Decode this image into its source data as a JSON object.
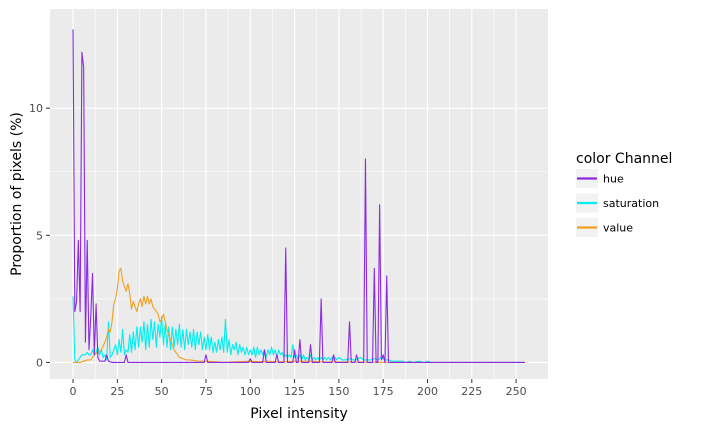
{
  "chart_data": {
    "type": "line",
    "xlabel": "Pixel intensity",
    "ylabel": "Proportion of pixels (%)",
    "xlim": [
      -13,
      268
    ],
    "ylim": [
      -0.65,
      13.9
    ],
    "x_ticks": [
      0,
      25,
      50,
      75,
      100,
      125,
      150,
      175,
      200,
      225,
      250
    ],
    "y_ticks": [
      0,
      5,
      10
    ],
    "grid": true,
    "legend": {
      "title": "color Channel",
      "position": "right"
    },
    "series": [
      {
        "name": "hue",
        "color": "#8a2be2",
        "points": [
          [
            0,
            13.1
          ],
          [
            1,
            2.0
          ],
          [
            2,
            2.4
          ],
          [
            3,
            4.8
          ],
          [
            4,
            2.0
          ],
          [
            5,
            12.2
          ],
          [
            6,
            11.6
          ],
          [
            7,
            0.8
          ],
          [
            8,
            4.8
          ],
          [
            9,
            0.5
          ],
          [
            10,
            1.8
          ],
          [
            11,
            3.5
          ],
          [
            12,
            0.3
          ],
          [
            13,
            2.3
          ],
          [
            14,
            0.2
          ],
          [
            15,
            0.05
          ],
          [
            18,
            0.05
          ],
          [
            19,
            0.3
          ],
          [
            20,
            0.05
          ],
          [
            22,
            0.0
          ],
          [
            29,
            0.0
          ],
          [
            30,
            0.3
          ],
          [
            31,
            0.0
          ],
          [
            74,
            0.0
          ],
          [
            75,
            0.3
          ],
          [
            76,
            0.0
          ],
          [
            99,
            0.0
          ],
          [
            100,
            0.15
          ],
          [
            101,
            0.0
          ],
          [
            107,
            0.0
          ],
          [
            108,
            0.5
          ],
          [
            109,
            0.0
          ],
          [
            114,
            0.0
          ],
          [
            115,
            0.3
          ],
          [
            116,
            0.0
          ],
          [
            119,
            0.0
          ],
          [
            120,
            4.5
          ],
          [
            121,
            0.0
          ],
          [
            124,
            0.0
          ],
          [
            125,
            0.5
          ],
          [
            126,
            0.0
          ],
          [
            127,
            0.0
          ],
          [
            128,
            0.9
          ],
          [
            129,
            0.0
          ],
          [
            133,
            0.0
          ],
          [
            134,
            0.7
          ],
          [
            135,
            0.0
          ],
          [
            139,
            0.0
          ],
          [
            140,
            2.5
          ],
          [
            141,
            0.0
          ],
          [
            146,
            0.0
          ],
          [
            147,
            0.3
          ],
          [
            148,
            0.0
          ],
          [
            155,
            0.0
          ],
          [
            156,
            1.6
          ],
          [
            157,
            0.0
          ],
          [
            159,
            0.0
          ],
          [
            160,
            0.3
          ],
          [
            161,
            0.0
          ],
          [
            164,
            0.0
          ],
          [
            165,
            8.0
          ],
          [
            166,
            0.0
          ],
          [
            169,
            0.0
          ],
          [
            170,
            3.7
          ],
          [
            171,
            0.0
          ],
          [
            172,
            0.0
          ],
          [
            173,
            6.2
          ],
          [
            174,
            0.1
          ],
          [
            175,
            0.3
          ],
          [
            176,
            0.0
          ],
          [
            177,
            3.4
          ],
          [
            178,
            0.0
          ],
          [
            255,
            0.0
          ]
        ]
      },
      {
        "name": "saturation",
        "color": "#00eeee",
        "points": [
          [
            0,
            2.6
          ],
          [
            1,
            0.1
          ],
          [
            2,
            0.0
          ],
          [
            3,
            0.1
          ],
          [
            4,
            0.2
          ],
          [
            5,
            0.3
          ],
          [
            6,
            0.3
          ],
          [
            7,
            0.3
          ],
          [
            8,
            0.4
          ],
          [
            9,
            0.3
          ],
          [
            10,
            0.3
          ],
          [
            11,
            0.5
          ],
          [
            12,
            0.3
          ],
          [
            13,
            0.4
          ],
          [
            14,
            0.6
          ],
          [
            15,
            0.3
          ],
          [
            16,
            0.5
          ],
          [
            17,
            0.2
          ],
          [
            18,
            0.3
          ],
          [
            19,
            0.1
          ],
          [
            20,
            1.6
          ],
          [
            21,
            0.2
          ],
          [
            22,
            0.3
          ],
          [
            23,
            0.5
          ],
          [
            24,
            0.7
          ],
          [
            25,
            0.3
          ],
          [
            26,
            0.9
          ],
          [
            27,
            0.4
          ],
          [
            28,
            1.3
          ],
          [
            29,
            0.3
          ],
          [
            30,
            0.5
          ],
          [
            31,
            0.4
          ],
          [
            32,
            1.1
          ],
          [
            33,
            0.4
          ],
          [
            34,
            1.2
          ],
          [
            35,
            0.5
          ],
          [
            36,
            1.4
          ],
          [
            37,
            0.6
          ],
          [
            38,
            1.4
          ],
          [
            39,
            0.8
          ],
          [
            40,
            1.6
          ],
          [
            41,
            0.5
          ],
          [
            42,
            1.5
          ],
          [
            43,
            0.6
          ],
          [
            44,
            1.7
          ],
          [
            45,
            0.9
          ],
          [
            46,
            1.6
          ],
          [
            47,
            0.6
          ],
          [
            48,
            1.5
          ],
          [
            49,
            1.0
          ],
          [
            50,
            1.8
          ],
          [
            51,
            0.7
          ],
          [
            52,
            1.5
          ],
          [
            53,
            0.6
          ],
          [
            54,
            1.4
          ],
          [
            55,
            0.5
          ],
          [
            56,
            1.4
          ],
          [
            57,
            0.6
          ],
          [
            58,
            1.3
          ],
          [
            59,
            0.7
          ],
          [
            60,
            1.5
          ],
          [
            61,
            0.6
          ],
          [
            62,
            1.3
          ],
          [
            63,
            0.5
          ],
          [
            64,
            1.3
          ],
          [
            65,
            0.7
          ],
          [
            66,
            1.2
          ],
          [
            67,
            0.6
          ],
          [
            68,
            1.3
          ],
          [
            69,
            0.5
          ],
          [
            70,
            1.2
          ],
          [
            71,
            0.7
          ],
          [
            72,
            1.2
          ],
          [
            73,
            0.5
          ],
          [
            74,
            1.0
          ],
          [
            75,
            0.5
          ],
          [
            76,
            1.1
          ],
          [
            77,
            0.5
          ],
          [
            78,
            1.0
          ],
          [
            79,
            0.4
          ],
          [
            80,
            0.8
          ],
          [
            81,
            0.4
          ],
          [
            82,
            0.9
          ],
          [
            83,
            0.5
          ],
          [
            84,
            1.0
          ],
          [
            85,
            0.4
          ],
          [
            86,
            1.7
          ],
          [
            87,
            0.4
          ],
          [
            88,
            0.9
          ],
          [
            89,
            0.3
          ],
          [
            90,
            0.7
          ],
          [
            91,
            0.5
          ],
          [
            92,
            0.8
          ],
          [
            93,
            0.3
          ],
          [
            94,
            0.7
          ],
          [
            95,
            0.4
          ],
          [
            96,
            0.6
          ],
          [
            97,
            0.3
          ],
          [
            98,
            0.6
          ],
          [
            99,
            0.3
          ],
          [
            100,
            0.5
          ],
          [
            101,
            0.3
          ],
          [
            102,
            0.6
          ],
          [
            103,
            0.2
          ],
          [
            104,
            0.6
          ],
          [
            105,
            0.3
          ],
          [
            106,
            0.5
          ],
          [
            107,
            0.3
          ],
          [
            108,
            0.5
          ],
          [
            109,
            0.2
          ],
          [
            110,
            0.5
          ],
          [
            111,
            0.3
          ],
          [
            112,
            0.6
          ],
          [
            113,
            0.3
          ],
          [
            114,
            0.5
          ],
          [
            115,
            0.2
          ],
          [
            116,
            0.5
          ],
          [
            117,
            0.3
          ],
          [
            118,
            0.4
          ],
          [
            119,
            0.2
          ],
          [
            120,
            0.3
          ],
          [
            121,
            0.2
          ],
          [
            122,
            0.3
          ],
          [
            123,
            0.2
          ],
          [
            124,
            0.7
          ],
          [
            125,
            0.2
          ],
          [
            126,
            0.3
          ],
          [
            127,
            0.1
          ],
          [
            128,
            0.3
          ],
          [
            129,
            0.1
          ],
          [
            130,
            0.3
          ],
          [
            131,
            0.1
          ],
          [
            132,
            0.2
          ],
          [
            133,
            0.1
          ],
          [
            134,
            0.3
          ],
          [
            135,
            0.1
          ],
          [
            136,
            0.2
          ],
          [
            137,
            0.1
          ],
          [
            138,
            0.2
          ],
          [
            139,
            0.1
          ],
          [
            140,
            0.2
          ],
          [
            141,
            0.1
          ],
          [
            142,
            0.2
          ],
          [
            143,
            0.1
          ],
          [
            144,
            0.2
          ],
          [
            145,
            0.1
          ],
          [
            146,
            0.2
          ],
          [
            147,
            0.1
          ],
          [
            148,
            0.2
          ],
          [
            149,
            0.1
          ],
          [
            150,
            0.2
          ],
          [
            152,
            0.1
          ],
          [
            154,
            0.1
          ],
          [
            156,
            0.15
          ],
          [
            158,
            0.1
          ],
          [
            160,
            0.1
          ],
          [
            162,
            0.2
          ],
          [
            164,
            0.1
          ],
          [
            166,
            0.1
          ],
          [
            168,
            0.1
          ],
          [
            170,
            0.15
          ],
          [
            172,
            0.1
          ],
          [
            174,
            0.2
          ],
          [
            176,
            0.1
          ],
          [
            178,
            0.1
          ],
          [
            180,
            0.05
          ],
          [
            182,
            0.05
          ],
          [
            184,
            0.05
          ],
          [
            186,
            0.05
          ],
          [
            188,
            0.0
          ],
          [
            190,
            0.05
          ],
          [
            192,
            0.0
          ],
          [
            195,
            0.05
          ],
          [
            198,
            0.0
          ],
          [
            200,
            0.05
          ],
          [
            202,
            0.0
          ],
          [
            255,
            0.0
          ]
        ]
      },
      {
        "name": "value",
        "color": "#f0a020",
        "points": [
          [
            0,
            0.0
          ],
          [
            2,
            0.0
          ],
          [
            4,
            0.0
          ],
          [
            6,
            0.05
          ],
          [
            8,
            0.1
          ],
          [
            10,
            0.1
          ],
          [
            12,
            0.3
          ],
          [
            14,
            0.4
          ],
          [
            16,
            0.5
          ],
          [
            18,
            0.8
          ],
          [
            19,
            1.0
          ],
          [
            20,
            1.3
          ],
          [
            21,
            1.2
          ],
          [
            22,
            1.6
          ],
          [
            23,
            2.3
          ],
          [
            24,
            2.5
          ],
          [
            25,
            2.9
          ],
          [
            26,
            3.6
          ],
          [
            27,
            3.7
          ],
          [
            28,
            3.2
          ],
          [
            29,
            3.0
          ],
          [
            30,
            2.8
          ],
          [
            31,
            3.1
          ],
          [
            32,
            2.7
          ],
          [
            33,
            2.1
          ],
          [
            34,
            2.4
          ],
          [
            35,
            2.2
          ],
          [
            36,
            2.0
          ],
          [
            37,
            2.3
          ],
          [
            38,
            2.5
          ],
          [
            39,
            2.2
          ],
          [
            40,
            2.6
          ],
          [
            41,
            2.3
          ],
          [
            42,
            2.6
          ],
          [
            43,
            2.3
          ],
          [
            44,
            2.5
          ],
          [
            45,
            2.2
          ],
          [
            46,
            2.1
          ],
          [
            47,
            2.0
          ],
          [
            48,
            1.9
          ],
          [
            49,
            1.6
          ],
          [
            50,
            1.7
          ],
          [
            51,
            1.9
          ],
          [
            52,
            1.6
          ],
          [
            53,
            1.3
          ],
          [
            54,
            1.1
          ],
          [
            55,
            0.9
          ],
          [
            56,
            0.7
          ],
          [
            57,
            0.5
          ],
          [
            58,
            0.4
          ],
          [
            59,
            0.3
          ],
          [
            60,
            0.2
          ],
          [
            62,
            0.15
          ],
          [
            64,
            0.1
          ],
          [
            66,
            0.1
          ],
          [
            68,
            0.08
          ],
          [
            70,
            0.05
          ],
          [
            75,
            0.05
          ],
          [
            80,
            0.03
          ],
          [
            85,
            0.0
          ],
          [
            90,
            0.02
          ],
          [
            100,
            0.05
          ],
          [
            105,
            0.03
          ],
          [
            110,
            0.05
          ],
          [
            115,
            0.02
          ],
          [
            120,
            0.03
          ],
          [
            125,
            0.05
          ],
          [
            130,
            0.05
          ],
          [
            135,
            0.05
          ],
          [
            140,
            0.02
          ],
          [
            150,
            0.02
          ],
          [
            160,
            0.01
          ],
          [
            200,
            0.0
          ],
          [
            255,
            0.0
          ]
        ]
      }
    ]
  }
}
